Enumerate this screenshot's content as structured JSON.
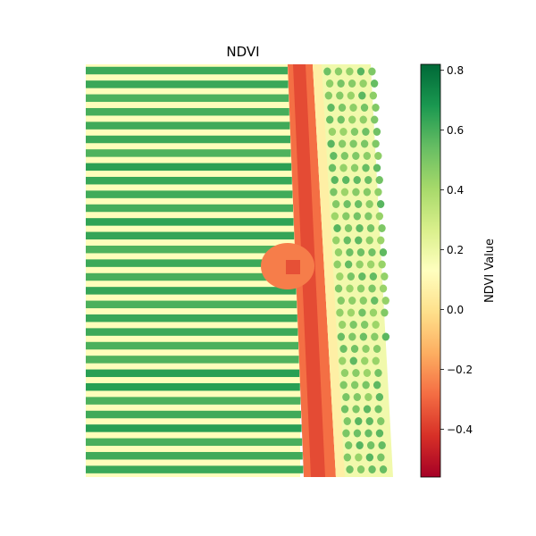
{
  "chart_data": {
    "type": "heatmap",
    "title": "NDVI",
    "colorbar": {
      "label": "NDVI Value",
      "colormap": "RdYlGn",
      "vmin": -0.56,
      "vmax": 0.82,
      "ticks": [
        0.8,
        0.6,
        0.4,
        0.2,
        0.0,
        -0.2,
        -0.4
      ],
      "tick_labels": [
        "0.8",
        "0.6",
        "0.4",
        "0.2",
        "0.0",
        "−0.2",
        "−0.4"
      ]
    },
    "axes_visible": false,
    "scene": {
      "left_field": {
        "rows": 30,
        "row_ndvi": 0.62,
        "gap_ndvi": 0.12
      },
      "road": {
        "ndvi": -0.28
      },
      "right_field": {
        "tree_ndvi": 0.5,
        "ground_ndvi": 0.18
      },
      "building": {
        "ndvi": -0.35
      }
    }
  }
}
